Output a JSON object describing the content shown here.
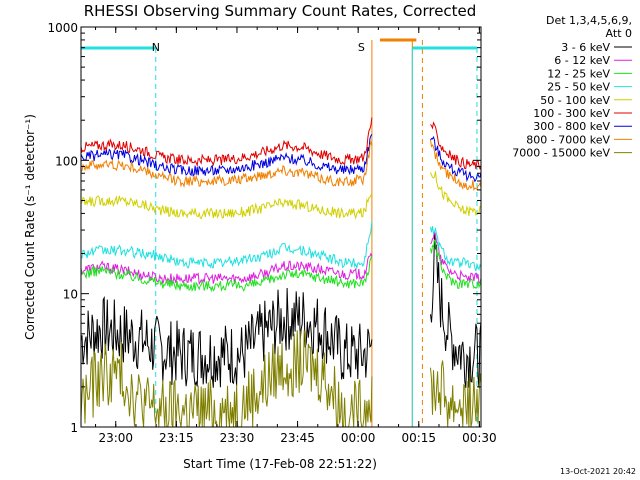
{
  "chart_data": {
    "type": "line",
    "title": "RHESSI Observing Summary Count Rates, Corrected",
    "xlabel": "Start Time (17-Feb-08 22:51:22)",
    "ylabel": "Corrected Count Rate (s⁻¹ detector⁻¹)",
    "ylog": true,
    "ylim": [
      1,
      1000
    ],
    "xlim_minutes": [
      0,
      99
    ],
    "x_ticks": [
      {
        "label": "23:00",
        "t": 8.6
      },
      {
        "label": "23:15",
        "t": 23.6
      },
      {
        "label": "23:30",
        "t": 38.6
      },
      {
        "label": "23:45",
        "t": 53.6
      },
      {
        "label": "00:00",
        "t": 68.6
      },
      {
        "label": "00:15",
        "t": 83.6
      },
      {
        "label": "00:30",
        "t": 98.6
      }
    ],
    "y_ticks": [
      {
        "label": "1",
        "v": 1
      },
      {
        "label": "10",
        "v": 10
      },
      {
        "label": "100",
        "v": 100
      },
      {
        "label": "1000",
        "v": 1000
      }
    ],
    "legend_header": [
      "Det 1,3,4,5,6,9,",
      "Att 0"
    ],
    "legend_position": "right",
    "series": [
      {
        "name": "3 - 6 keV",
        "color": "#000000",
        "x": [
          0,
          5,
          10,
          15,
          20,
          25,
          30,
          35,
          40,
          45,
          50,
          55,
          60,
          65,
          70,
          72
        ],
        "y": [
          4.5,
          5.5,
          5,
          4.5,
          3.8,
          3.5,
          3.5,
          3.5,
          3.5,
          5,
          6.5,
          6.5,
          5.5,
          3.5,
          3.5,
          4
        ]
      },
      {
        "name": "6 - 12 keV",
        "color": "#e020e0",
        "x": [
          0,
          5,
          10,
          15,
          20,
          25,
          30,
          35,
          40,
          45,
          50,
          55,
          60,
          65,
          70,
          72
        ],
        "y": [
          15,
          16,
          15,
          14,
          13,
          13,
          13,
          13,
          13,
          14,
          16,
          16,
          15,
          14,
          14,
          20
        ]
      },
      {
        "name": "12 - 25 keV",
        "color": "#20e020",
        "x": [
          0,
          5,
          10,
          15,
          20,
          25,
          30,
          35,
          40,
          45,
          50,
          55,
          60,
          65,
          70,
          72
        ],
        "y": [
          14,
          15,
          14,
          13,
          12,
          11.5,
          11.5,
          11.5,
          11.5,
          12,
          14,
          14,
          13,
          12,
          12,
          18
        ]
      },
      {
        "name": "25 - 50 keV",
        "color": "#20e0e0",
        "x": [
          0,
          5,
          10,
          15,
          20,
          25,
          30,
          35,
          40,
          45,
          50,
          55,
          60,
          65,
          70,
          72
        ],
        "y": [
          20,
          21,
          21,
          20,
          19,
          17,
          17,
          17,
          18,
          19,
          22,
          21,
          19,
          17,
          17,
          35
        ]
      },
      {
        "name": "50 - 100 keV",
        "color": "#d0d000",
        "x": [
          0,
          5,
          10,
          15,
          20,
          25,
          30,
          35,
          40,
          45,
          50,
          55,
          60,
          65,
          70,
          72
        ],
        "y": [
          48,
          50,
          50,
          47,
          42,
          40,
          40,
          40,
          41,
          44,
          48,
          46,
          42,
          40,
          40,
          60
        ]
      },
      {
        "name": "100 - 300 keV",
        "color": "#e00000",
        "x": [
          0,
          5,
          10,
          15,
          20,
          25,
          30,
          35,
          40,
          45,
          50,
          55,
          60,
          65,
          70,
          72
        ],
        "y": [
          125,
          130,
          130,
          120,
          105,
          100,
          100,
          100,
          105,
          115,
          130,
          125,
          110,
          100,
          105,
          200
        ]
      },
      {
        "name": "300 - 800 keV",
        "color": "#0000e0",
        "x": [
          0,
          5,
          10,
          15,
          20,
          25,
          30,
          35,
          40,
          45,
          50,
          55,
          60,
          65,
          70,
          72
        ],
        "y": [
          105,
          110,
          110,
          100,
          88,
          84,
          84,
          84,
          88,
          95,
          105,
          100,
          90,
          84,
          88,
          160
        ]
      },
      {
        "name": "800 - 7000 keV",
        "color": "#f08000",
        "x": [
          0,
          5,
          10,
          15,
          20,
          25,
          30,
          35,
          40,
          45,
          50,
          55,
          60,
          65,
          70,
          72
        ],
        "y": [
          90,
          93,
          92,
          85,
          74,
          70,
          70,
          70,
          72,
          78,
          85,
          80,
          73,
          68,
          72,
          140
        ]
      },
      {
        "name": "7000 - 15000 keV",
        "color": "#808000",
        "x": [
          0,
          5,
          10,
          15,
          20,
          25,
          30,
          35,
          40,
          45,
          50,
          55,
          60,
          65,
          70,
          72
        ],
        "y": [
          1.5,
          2.5,
          2.5,
          1.5,
          1.3,
          1.3,
          1.3,
          1.3,
          1.5,
          2,
          3,
          3,
          2.5,
          1.3,
          1.3,
          2
        ]
      }
    ],
    "series_after": [
      {
        "x": [
          86.5,
          87.5,
          89,
          91,
          93,
          95,
          97,
          99
        ],
        "y": [
          8,
          18,
          9,
          5,
          4,
          3.5,
          3.5,
          3.5
        ]
      },
      {
        "x": [
          86.5,
          87.5,
          89,
          91,
          93,
          95,
          97,
          99
        ],
        "y": [
          25,
          28,
          18,
          15,
          14,
          13,
          13,
          13
        ]
      },
      {
        "x": [
          86.5,
          87.5,
          89,
          91,
          93,
          95,
          97,
          99
        ],
        "y": [
          20,
          25,
          16,
          13,
          12,
          12,
          12,
          12
        ]
      },
      {
        "x": [
          86.5,
          87.5,
          89,
          91,
          93,
          95,
          97,
          99
        ],
        "y": [
          30,
          30,
          22,
          18,
          17,
          17,
          16,
          16
        ]
      },
      {
        "x": [
          86.5,
          87.5,
          89,
          91,
          93,
          95,
          97,
          99
        ],
        "y": [
          80,
          80,
          60,
          50,
          45,
          42,
          42,
          42
        ]
      },
      {
        "x": [
          86.5,
          87.5,
          89,
          91,
          93,
          95,
          97,
          99
        ],
        "y": [
          190,
          170,
          130,
          110,
          100,
          95,
          92,
          92
        ]
      },
      {
        "x": [
          86.5,
          87.5,
          89,
          91,
          93,
          95,
          97,
          99
        ],
        "y": [
          150,
          135,
          105,
          90,
          82,
          78,
          76,
          76
        ]
      },
      {
        "x": [
          86.5,
          87.5,
          89,
          91,
          93,
          95,
          97,
          99
        ],
        "y": [
          130,
          115,
          90,
          78,
          70,
          66,
          65,
          65
        ]
      },
      {
        "x": [
          86.5,
          87.5,
          89,
          91,
          93,
          95,
          97,
          99
        ],
        "y": [
          2,
          2,
          2,
          1.5,
          1.5,
          1.5,
          1.5,
          1.5
        ]
      }
    ],
    "annotations": [
      {
        "text": "N",
        "color": "#20e0e0",
        "t": 20
      },
      {
        "text": "S",
        "color": "#f08000",
        "t": 72
      }
    ],
    "intervals": {
      "night": [
        {
          "t0": 0,
          "t1": 18.5
        },
        {
          "t0": 82,
          "t1": 98
        }
      ],
      "saa": [
        {
          "t0": 74,
          "t1": 83
        }
      ],
      "dashed_cyan": [
        18.5,
        98
      ],
      "dashed_orange": [
        84.5
      ],
      "solid_orange": [
        72,
        82
      ],
      "solid_cyan": [
        82
      ]
    },
    "timestamp": "13-Oct-2021 20:42"
  }
}
